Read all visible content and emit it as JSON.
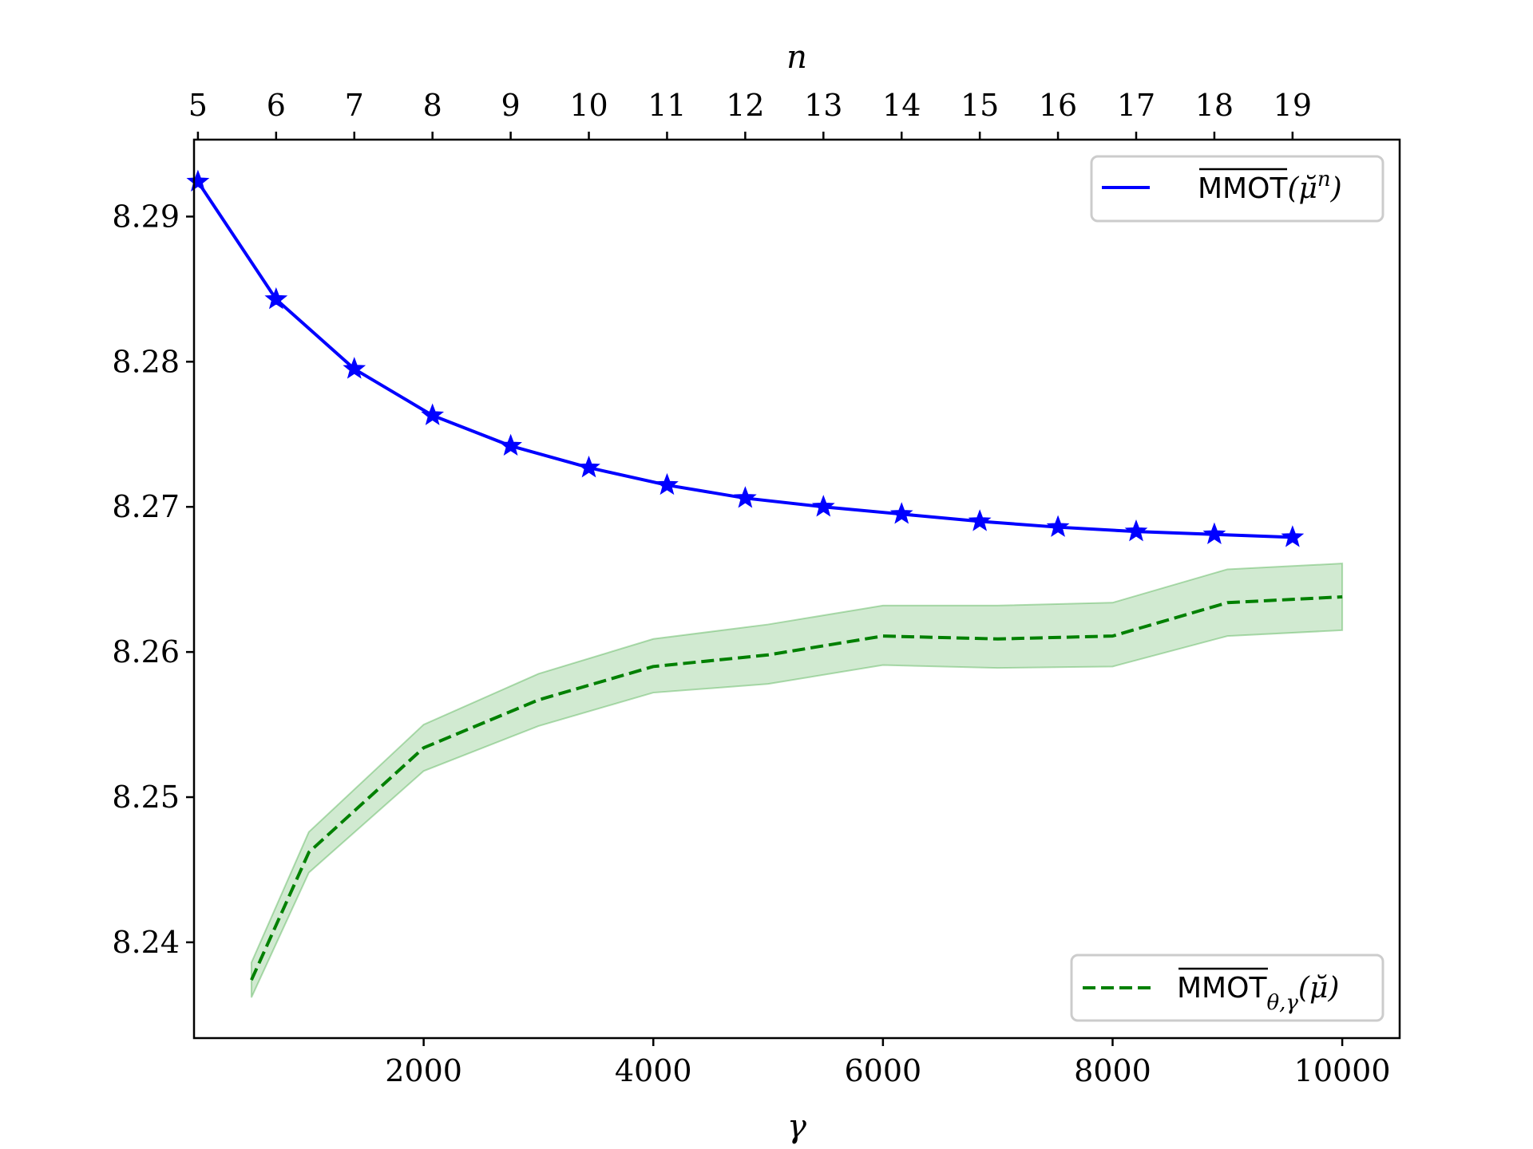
{
  "chart_data": {
    "type": "line",
    "x_bottom": {
      "label": "γ",
      "ticks": [
        2000,
        4000,
        6000,
        8000,
        10000
      ],
      "tick_labels": [
        "2000",
        "4000",
        "6000",
        "8000",
        "10000"
      ],
      "lim": [
        0,
        10500
      ]
    },
    "x_top": {
      "label": "n",
      "ticks": [
        5,
        6,
        7,
        8,
        9,
        10,
        11,
        12,
        13,
        14,
        15,
        16,
        17,
        18,
        19
      ],
      "tick_labels": [
        "5",
        "6",
        "7",
        "8",
        "9",
        "10",
        "11",
        "12",
        "13",
        "14",
        "15",
        "16",
        "17",
        "18",
        "19"
      ],
      "lim": [
        4.95,
        20.37
      ]
    },
    "y": {
      "ticks": [
        8.24,
        8.25,
        8.26,
        8.27,
        8.28,
        8.29
      ],
      "tick_labels": [
        "8.24",
        "8.25",
        "8.26",
        "8.27",
        "8.28",
        "8.29"
      ],
      "lim": [
        8.2334,
        8.2953
      ]
    },
    "series": [
      {
        "name": "MMOT(μ̆ⁿ)",
        "legend_main": "MMOT",
        "legend_args": "(μ̆",
        "legend_sup": "n",
        "legend_close": ")",
        "axis": "top",
        "color": "#0000ff",
        "style": "solid",
        "marker": "star",
        "x": [
          5,
          6,
          7,
          8,
          9,
          10,
          11,
          12,
          13,
          14,
          15,
          16,
          17,
          18,
          19
        ],
        "y": [
          8.2924,
          8.2843,
          8.2795,
          8.2763,
          8.2742,
          8.2727,
          8.2715,
          8.2706,
          8.27,
          8.2695,
          8.269,
          8.2686,
          8.2683,
          8.2681,
          8.2679
        ]
      },
      {
        "name": "MMOT_θ,γ(μ̆)",
        "legend_main": "MMOT",
        "legend_sub": "θ,γ",
        "legend_args": "(μ̆)",
        "axis": "bottom",
        "color": "#008000",
        "style": "dashed",
        "band_color": "#2ca02c",
        "x": [
          500,
          1000,
          2000,
          3000,
          4000,
          5000,
          6000,
          7000,
          8000,
          9000,
          10000
        ],
        "y": [
          8.2374,
          8.2462,
          8.2534,
          8.2567,
          8.259,
          8.2598,
          8.2611,
          8.2609,
          8.2611,
          8.2634,
          8.2638
        ],
        "y_upper": [
          8.2386,
          8.2476,
          8.255,
          8.2585,
          8.2609,
          8.2619,
          8.2632,
          8.2632,
          8.2634,
          8.2657,
          8.2661
        ],
        "y_lower": [
          8.2362,
          8.2448,
          8.2518,
          8.2549,
          8.2572,
          8.2578,
          8.2591,
          8.2589,
          8.259,
          8.2611,
          8.2615
        ]
      }
    ]
  }
}
